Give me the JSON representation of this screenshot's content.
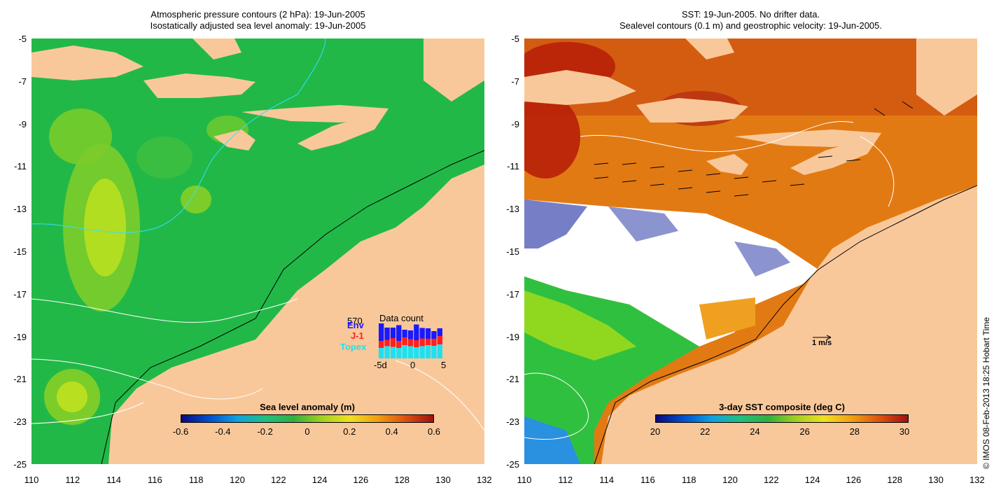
{
  "left_panel": {
    "title_line1": "Atmospheric pressure contours (2 hPa): 19-Jun-2005",
    "title_line2": "Isostatically adjusted sea level anomaly: 19-Jun-2005",
    "colorbar_title": "Sea level anomaly (m)",
    "colorbar_ticks": [
      "-0.6",
      "-0.4",
      "-0.2",
      "0",
      "0.2",
      "0.4",
      "0.6"
    ],
    "inset": {
      "title": "Data count",
      "max_label": "570",
      "legend": [
        {
          "label": "Env",
          "color": "#1a1aff"
        },
        {
          "label": "J-1",
          "color": "#ff2020"
        },
        {
          "label": "Topex",
          "color": "#20e0f0"
        }
      ],
      "x_ticks": [
        "-5d",
        "0",
        "5"
      ],
      "bars": [
        {
          "topex": 0.3,
          "j1": 0.2,
          "env": 0.5
        },
        {
          "topex": 0.35,
          "j1": 0.18,
          "env": 0.35
        },
        {
          "topex": 0.33,
          "j1": 0.25,
          "env": 0.3
        },
        {
          "topex": 0.3,
          "j1": 0.2,
          "env": 0.45
        },
        {
          "topex": 0.38,
          "j1": 0.22,
          "env": 0.22
        },
        {
          "topex": 0.35,
          "j1": 0.2,
          "env": 0.25
        },
        {
          "topex": 0.32,
          "j1": 0.2,
          "env": 0.45
        },
        {
          "topex": 0.35,
          "j1": 0.22,
          "env": 0.3
        },
        {
          "topex": 0.38,
          "j1": 0.18,
          "env": 0.3
        },
        {
          "topex": 0.36,
          "j1": 0.2,
          "env": 0.22
        },
        {
          "topex": 0.4,
          "j1": 0.24,
          "env": 0.22
        }
      ]
    }
  },
  "right_panel": {
    "title_line1": "SST: 19-Jun-2005. No drifter data.",
    "title_line2": "Sealevel contours (0.1 m) and geostrophic velocity: 19-Jun-2005.",
    "colorbar_title": "3-day SST composite (deg C)",
    "colorbar_ticks": [
      "20",
      "22",
      "24",
      "26",
      "28",
      "30"
    ],
    "scale_arrow_label": "1 m/s"
  },
  "axes": {
    "lat_ticks": [
      "-5",
      "-7",
      "-9",
      "-11",
      "-13",
      "-15",
      "-17",
      "-19",
      "-21",
      "-23",
      "-25"
    ],
    "lon_ticks": [
      "110",
      "112",
      "114",
      "116",
      "118",
      "120",
      "122",
      "124",
      "126",
      "128",
      "130",
      "132"
    ],
    "lon_range": [
      110,
      132
    ],
    "lat_range": [
      -25,
      -5
    ]
  },
  "credit": "© IMOS 08-Feb-2013 18:25 Hobart Time",
  "colors": {
    "land": "#f9c89a",
    "sla_ocean": "#22bb44",
    "sst_warm": "#e07010",
    "sst_hot": "#b81c08"
  }
}
